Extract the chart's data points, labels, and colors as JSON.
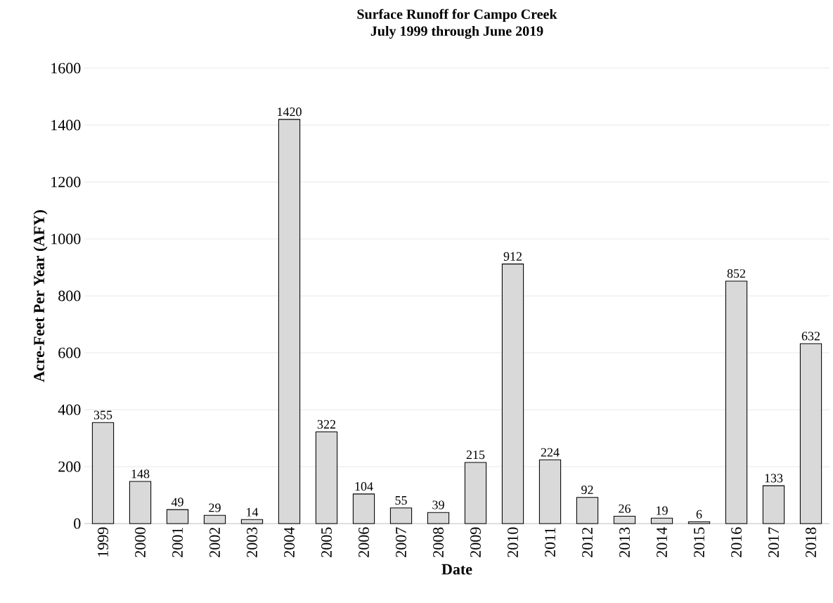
{
  "chart_data": {
    "type": "bar",
    "title": "Surface Runoff for Campo Creek",
    "subtitle": "July 1999 through June 2019",
    "xlabel": "Date",
    "ylabel": "Acre-Feet Per Year (AFY)",
    "categories": [
      "1999",
      "2000",
      "2001",
      "2002",
      "2003",
      "2004",
      "2005",
      "2006",
      "2007",
      "2008",
      "2009",
      "2010",
      "2011",
      "2012",
      "2013",
      "2014",
      "2015",
      "2016",
      "2017",
      "2018"
    ],
    "values": [
      355,
      148,
      49,
      29,
      14,
      1420,
      322,
      104,
      55,
      39,
      215,
      912,
      224,
      92,
      26,
      19,
      6,
      852,
      133,
      632
    ],
    "color": "#d9d9d9",
    "ylim": [
      0,
      1600
    ],
    "yticks": [
      0,
      200,
      400,
      600,
      800,
      1000,
      1200,
      1400,
      1600
    ],
    "grid": "y",
    "data_labels": true
  }
}
